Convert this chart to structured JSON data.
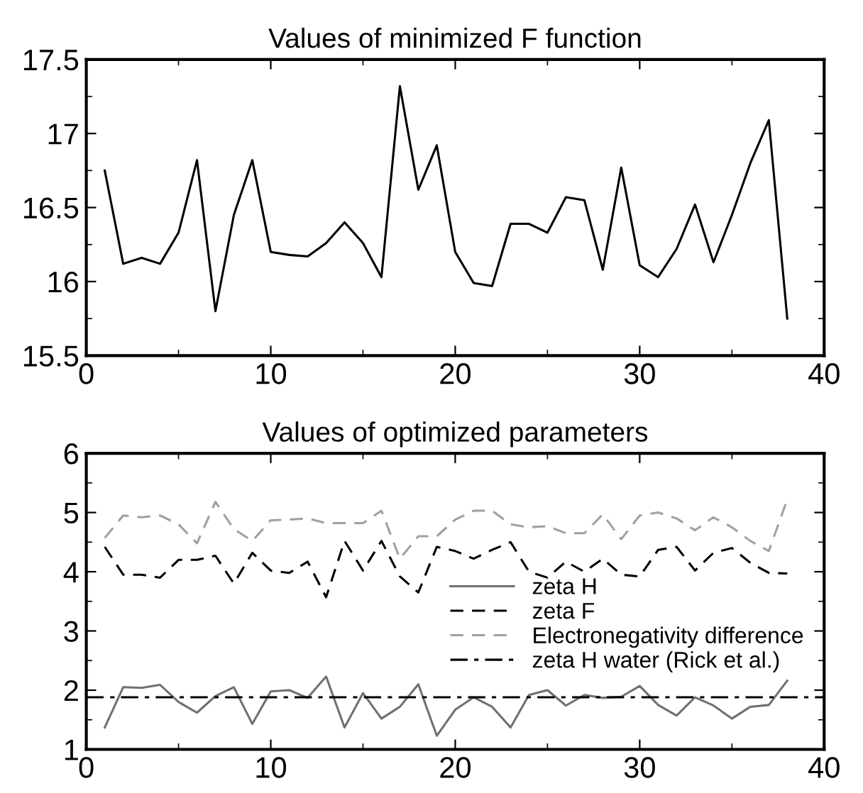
{
  "chart_data": [
    {
      "type": "line",
      "title": "Values of minimized F function",
      "x": [
        1,
        2,
        3,
        4,
        5,
        6,
        7,
        8,
        9,
        10,
        11,
        12,
        13,
        14,
        15,
        16,
        17,
        18,
        19,
        20,
        21,
        22,
        23,
        24,
        25,
        26,
        27,
        28,
        29,
        30,
        31,
        32,
        33,
        34,
        35,
        36,
        37,
        38
      ],
      "series": [
        {
          "color": "#000000",
          "values": [
            16.75,
            16.12,
            16.16,
            16.12,
            16.33,
            16.82,
            15.8,
            16.45,
            16.82,
            16.2,
            16.18,
            16.17,
            16.26,
            16.4,
            16.26,
            16.03,
            17.32,
            16.62,
            16.92,
            16.2,
            15.99,
            15.97,
            16.39,
            16.39,
            16.33,
            16.57,
            16.55,
            16.08,
            16.77,
            16.11,
            16.03,
            16.22,
            16.52,
            16.13,
            16.45,
            16.8,
            17.09,
            15.75
          ]
        }
      ],
      "xlim": [
        0,
        40
      ],
      "xticks": [
        0,
        10,
        20,
        30,
        40
      ],
      "ylim": [
        15.5,
        17.5
      ],
      "yticks": [
        15.5,
        16,
        16.5,
        17,
        17.5
      ],
      "grid": false,
      "legend": false
    },
    {
      "type": "line",
      "title": "Values of optimized parameters",
      "x": [
        1,
        2,
        3,
        4,
        5,
        6,
        7,
        8,
        9,
        10,
        11,
        12,
        13,
        14,
        15,
        16,
        17,
        18,
        19,
        20,
        21,
        22,
        23,
        24,
        25,
        26,
        27,
        28,
        29,
        30,
        31,
        32,
        33,
        34,
        35,
        36,
        37,
        38
      ],
      "series": [
        {
          "name": "zeta H",
          "color": "#707070",
          "line_style": "solid",
          "values": [
            1.37,
            2.05,
            2.04,
            2.09,
            1.8,
            1.62,
            1.9,
            2.05,
            1.43,
            1.98,
            2.0,
            1.87,
            2.23,
            1.37,
            1.95,
            1.52,
            1.72,
            2.1,
            1.23,
            1.67,
            1.88,
            1.72,
            1.37,
            1.92,
            2.0,
            1.74,
            1.92,
            1.87,
            1.89,
            2.07,
            1.75,
            1.57,
            1.88,
            1.74,
            1.52,
            1.72,
            1.75,
            2.16
          ]
        },
        {
          "name": "zeta F",
          "color": "#000000",
          "line_style": "dashed",
          "values": [
            4.42,
            3.95,
            3.95,
            3.9,
            4.2,
            4.2,
            4.27,
            3.8,
            4.32,
            4.02,
            3.98,
            4.17,
            3.57,
            4.52,
            4.02,
            4.52,
            3.92,
            3.65,
            4.42,
            4.35,
            4.22,
            4.37,
            4.5,
            4.0,
            3.9,
            4.17,
            4.0,
            4.22,
            3.95,
            3.92,
            4.37,
            4.42,
            4.02,
            4.32,
            4.4,
            4.15,
            3.98,
            3.97
          ]
        },
        {
          "name": "Electronegativity difference",
          "color": "#a0a0a0",
          "line_style": "dashed",
          "values": [
            4.57,
            4.95,
            4.92,
            4.95,
            4.8,
            4.48,
            5.18,
            4.72,
            4.52,
            4.87,
            4.88,
            4.9,
            4.82,
            4.82,
            4.82,
            5.03,
            4.22,
            4.6,
            4.6,
            4.88,
            5.03,
            5.03,
            4.8,
            4.75,
            4.77,
            4.65,
            4.65,
            4.97,
            4.55,
            4.95,
            5.0,
            4.9,
            4.7,
            4.92,
            4.75,
            4.52,
            4.35,
            5.22
          ]
        },
        {
          "name": "zeta H water (Rick et al.)",
          "color": "#000000",
          "line_style": "dashdot",
          "x": [
            0,
            40
          ],
          "values": [
            1.88,
            1.88
          ]
        }
      ],
      "xlim": [
        0,
        40
      ],
      "xticks": [
        0,
        10,
        20,
        30,
        40
      ],
      "ylim": [
        1,
        6
      ],
      "yticks": [
        1,
        2,
        3,
        4,
        5,
        6
      ],
      "grid": false,
      "legend": "right"
    }
  ]
}
